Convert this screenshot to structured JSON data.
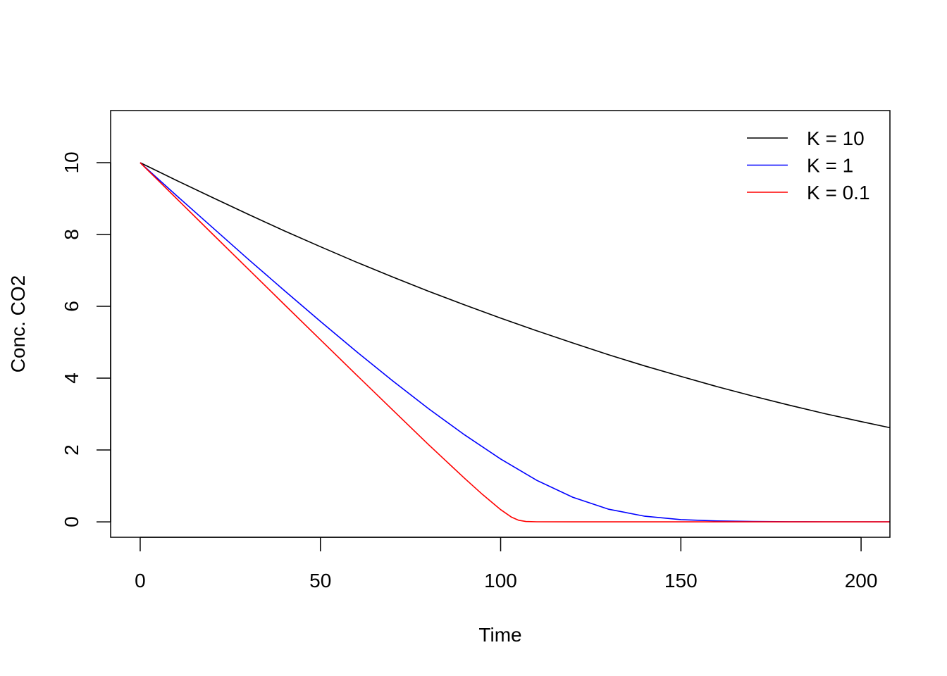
{
  "chart_data": {
    "type": "line",
    "title": "",
    "xlabel": "Time",
    "ylabel": "Conc. CO2",
    "xlim": [
      -8.2,
      208.0
    ],
    "ylim": [
      -0.43,
      11.45
    ],
    "xticks": [
      0,
      50,
      100,
      150,
      200
    ],
    "xtick_labels": [
      "0",
      "50",
      "100",
      "150",
      "200"
    ],
    "yticks": [
      0,
      2,
      4,
      6,
      8,
      10
    ],
    "ytick_labels": [
      "0",
      "2",
      "4",
      "6",
      "8",
      "10"
    ],
    "grid": false,
    "legend_position": "top-right",
    "series": [
      {
        "name": "K = 10",
        "color": "#000000",
        "x": [
          0,
          10,
          20,
          30,
          40,
          50,
          60,
          70,
          80,
          90,
          100,
          110,
          120,
          130,
          140,
          150,
          160,
          170,
          180,
          190,
          200,
          208
        ],
        "y": [
          10,
          9.51,
          9.03,
          8.56,
          8.1,
          7.66,
          7.23,
          6.82,
          6.42,
          6.04,
          5.67,
          5.32,
          4.98,
          4.65,
          4.34,
          4.05,
          3.765,
          3.5,
          3.25,
          3.01,
          2.79,
          2.62
        ]
      },
      {
        "name": "K = 1",
        "color": "#0000FF",
        "x": [
          0,
          10,
          20,
          30,
          40,
          50,
          60,
          70,
          80,
          90,
          100,
          110,
          120,
          130,
          140,
          150,
          160,
          170,
          180,
          190,
          200,
          208
        ],
        "y": [
          10,
          9.09,
          8.2,
          7.31,
          6.44,
          5.58,
          4.74,
          3.93,
          3.15,
          2.42,
          1.75,
          1.155,
          0.685,
          0.35,
          0.157,
          0.063,
          0.024,
          0.009,
          0.0034,
          0.0012,
          0.0005,
          0.0002
        ]
      },
      {
        "name": "K = 0.1",
        "color": "#FF0000",
        "x": [
          0,
          10,
          20,
          30,
          40,
          50,
          60,
          70,
          80,
          90,
          95,
          100,
          103,
          105,
          107,
          110,
          120,
          150,
          180,
          208
        ],
        "y": [
          10,
          9.01,
          8.02,
          7.035,
          6.05,
          5.07,
          4.09,
          3.12,
          2.15,
          1.21,
          0.76,
          0.34,
          0.13,
          0.044,
          0.009,
          0.0005,
          0,
          0,
          0,
          0
        ]
      }
    ]
  }
}
